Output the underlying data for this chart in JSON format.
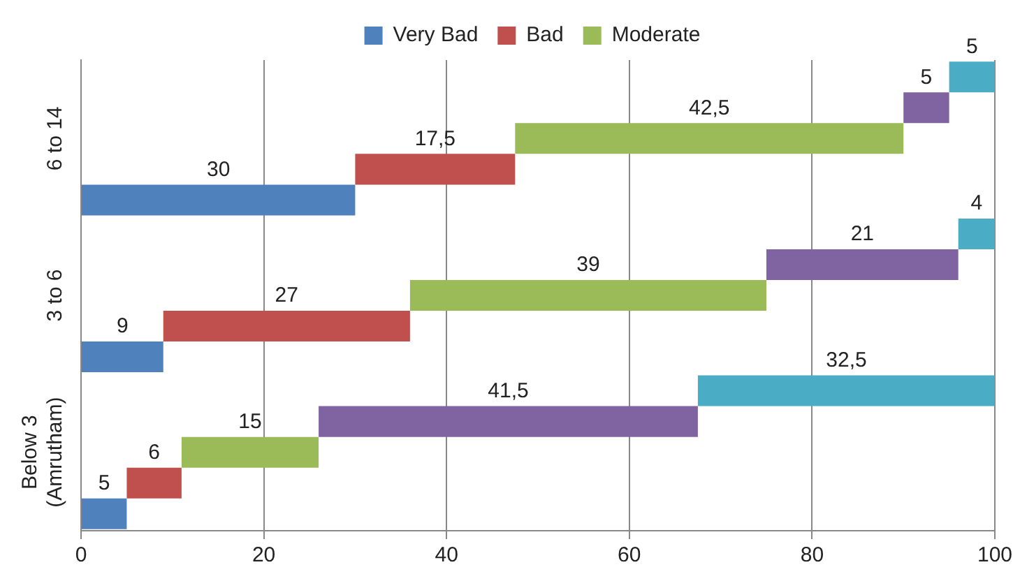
{
  "chart_data": {
    "type": "bar",
    "orientation": "horizontal",
    "stacked": true,
    "categories": [
      "6 to 14",
      "3 to 6",
      "Below 3 (Amrutham)"
    ],
    "series": [
      {
        "name": "Very Bad",
        "color": "#4f81bd",
        "values": [
          30,
          9,
          5
        ],
        "value_labels": [
          "30",
          "9",
          "5"
        ]
      },
      {
        "name": "Bad",
        "color": "#c0504d",
        "values": [
          17.5,
          27,
          6
        ],
        "value_labels": [
          "17,5",
          "27",
          "6"
        ]
      },
      {
        "name": "Moderate",
        "color": "#9bbb59",
        "values": [
          42.5,
          39,
          15
        ],
        "value_labels": [
          "42,5",
          "39",
          "15"
        ]
      },
      {
        "color": "#8064a2",
        "values": [
          5,
          21,
          41.5
        ],
        "value_labels": [
          "5",
          "21",
          "41,5"
        ]
      },
      {
        "color": "#4bacc6",
        "values": [
          5,
          4,
          32.5
        ],
        "value_labels": [
          "5",
          "4",
          "32,5"
        ]
      }
    ],
    "xlim": [
      0,
      100
    ],
    "xticks": [
      0,
      20,
      40,
      60,
      80,
      100
    ],
    "grid": "x",
    "legend": "top"
  }
}
